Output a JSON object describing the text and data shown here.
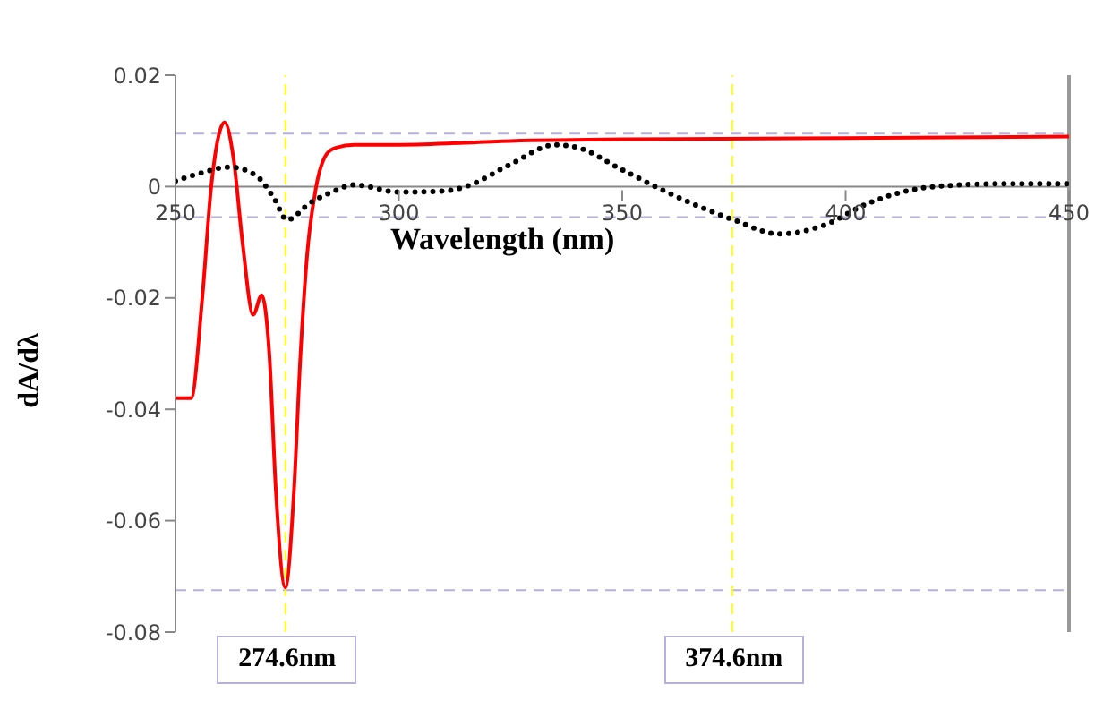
{
  "chart_data": {
    "type": "line",
    "xlabel": "Wavelength (nm)",
    "ylabel": "dA/dλ",
    "xlim": [
      250,
      450
    ],
    "xticks": [
      250,
      300,
      350,
      400,
      450
    ],
    "ylim": [
      -0.08,
      0.02
    ],
    "yticks": [
      -0.08,
      -0.06,
      -0.04,
      -0.02,
      0,
      0.02
    ],
    "series": [
      {
        "color": "#ff0000",
        "line_style": "solid",
        "x": [
          250,
          253.5,
          256,
          258,
          261,
          263,
          265,
          267.4,
          269.3,
          271,
          272.5,
          274.6,
          276.5,
          278,
          279.5,
          281.5,
          284,
          286,
          290,
          300,
          325,
          350,
          400,
          450
        ],
        "values": [
          -0.038,
          -0.038,
          -0.02,
          0,
          0.0115,
          0.005,
          -0.01,
          -0.023,
          -0.0195,
          -0.03,
          -0.055,
          -0.072,
          -0.055,
          -0.03,
          -0.012,
          0,
          0.006,
          0.007,
          0.0075,
          0.0075,
          0.0082,
          0.0085,
          0.0087,
          0.009
        ]
      },
      {
        "color": "#000000",
        "line_style": "dotted",
        "x": [
          250,
          256,
          262,
          268,
          272,
          275,
          280,
          285,
          290,
          300,
          310,
          315,
          325,
          335,
          340,
          350,
          360,
          375,
          385,
          395,
          405,
          420,
          435,
          450
        ],
        "values": [
          0.001,
          0.0025,
          0.0035,
          0.002,
          -0.002,
          -0.006,
          -0.003,
          -0.001,
          0.0003,
          -0.001,
          -0.0008,
          0,
          0.004,
          0.0075,
          0.007,
          0.003,
          -0.001,
          -0.006,
          -0.0085,
          -0.007,
          -0.003,
          0,
          0.0005,
          0.0005
        ]
      }
    ],
    "ref_lines": [
      {
        "axis": "y",
        "value": 0.0095,
        "color": "#b8b0dc",
        "line_style": "dashed"
      },
      {
        "axis": "y",
        "value": -0.0055,
        "color": "#b8b0dc",
        "line_style": "dashed"
      },
      {
        "axis": "y",
        "value": -0.0725,
        "color": "#b8b0dc",
        "line_style": "dashed"
      },
      {
        "axis": "x",
        "value": 274.6,
        "label": "274.6nm",
        "color": "#ffff00",
        "line_style": "dashed"
      },
      {
        "axis": "x",
        "value": 374.6,
        "label": "374.6nm",
        "color": "#ffff00",
        "line_style": "dashed"
      }
    ]
  }
}
